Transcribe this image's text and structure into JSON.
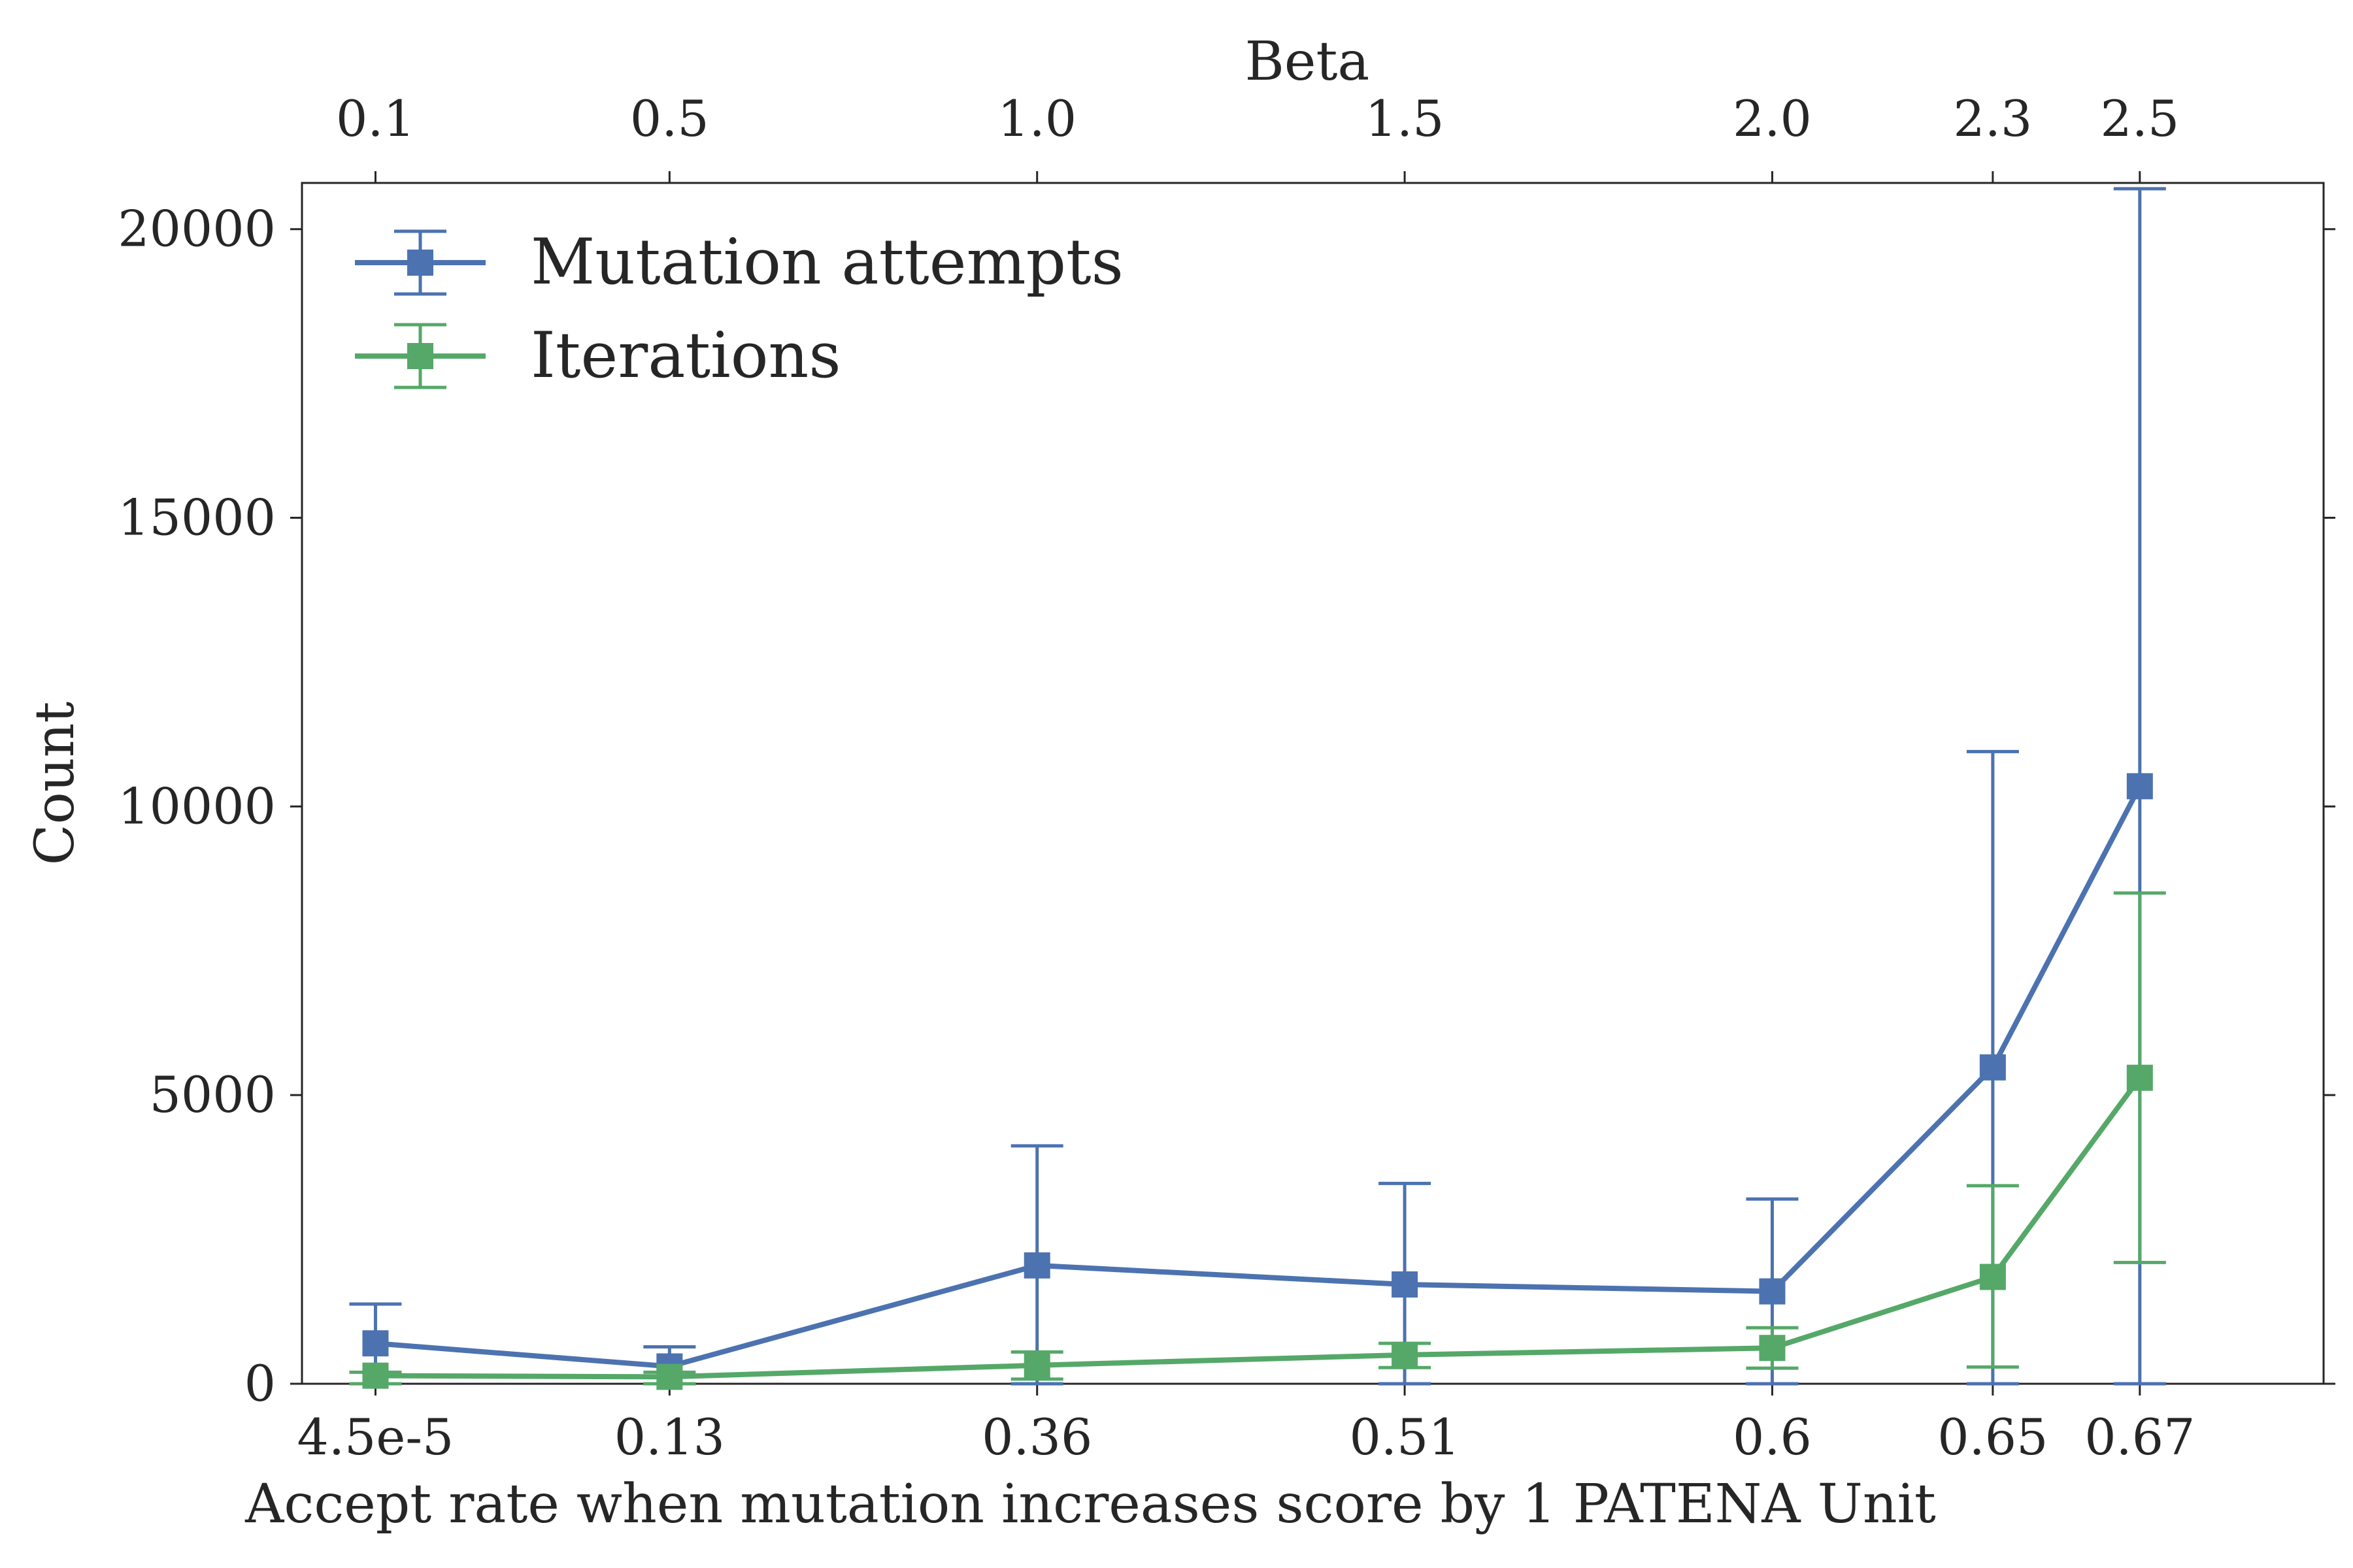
{
  "chart_data": {
    "type": "line",
    "x_categories": [
      "4.5e-5",
      "0.13",
      "0.36",
      "0.51",
      "0.6",
      "0.65",
      "0.67"
    ],
    "top_categories": [
      "0.1",
      "0.5",
      "1.0",
      "1.5",
      "2.0",
      "2.3",
      "2.5"
    ],
    "beta": [
      0.1,
      0.5,
      1.0,
      1.5,
      2.0,
      2.3,
      2.5
    ],
    "xlabel": "Accept rate when mutation increases score by 1 PATENA Unit",
    "top_xlabel": "Beta",
    "ylabel": "Count",
    "ylim": [
      0,
      20800
    ],
    "xlim_beta": [
      -0.0,
      2.75
    ],
    "yticks": [
      0,
      5000,
      10000,
      15000,
      20000
    ],
    "legend_position": "top-left",
    "grid": false,
    "series": [
      {
        "name": "Mutation attempts",
        "color": "#4c72b0",
        "marker": "square",
        "values": [
          700,
          300,
          2050,
          1720,
          1600,
          5480,
          10350
        ],
        "err_low": [
          0,
          0,
          0,
          0,
          0,
          0,
          0
        ],
        "err_high": [
          1380,
          640,
          4120,
          3470,
          3200,
          10950,
          20700
        ]
      },
      {
        "name": "Iterations",
        "color": "#55a868",
        "marker": "square",
        "values": [
          140,
          120,
          320,
          500,
          620,
          1850,
          5300
        ],
        "err_low": [
          0,
          0,
          80,
          280,
          270,
          290,
          2100
        ],
        "err_high": [
          200,
          200,
          550,
          700,
          970,
          3430,
          8500
        ]
      }
    ]
  }
}
